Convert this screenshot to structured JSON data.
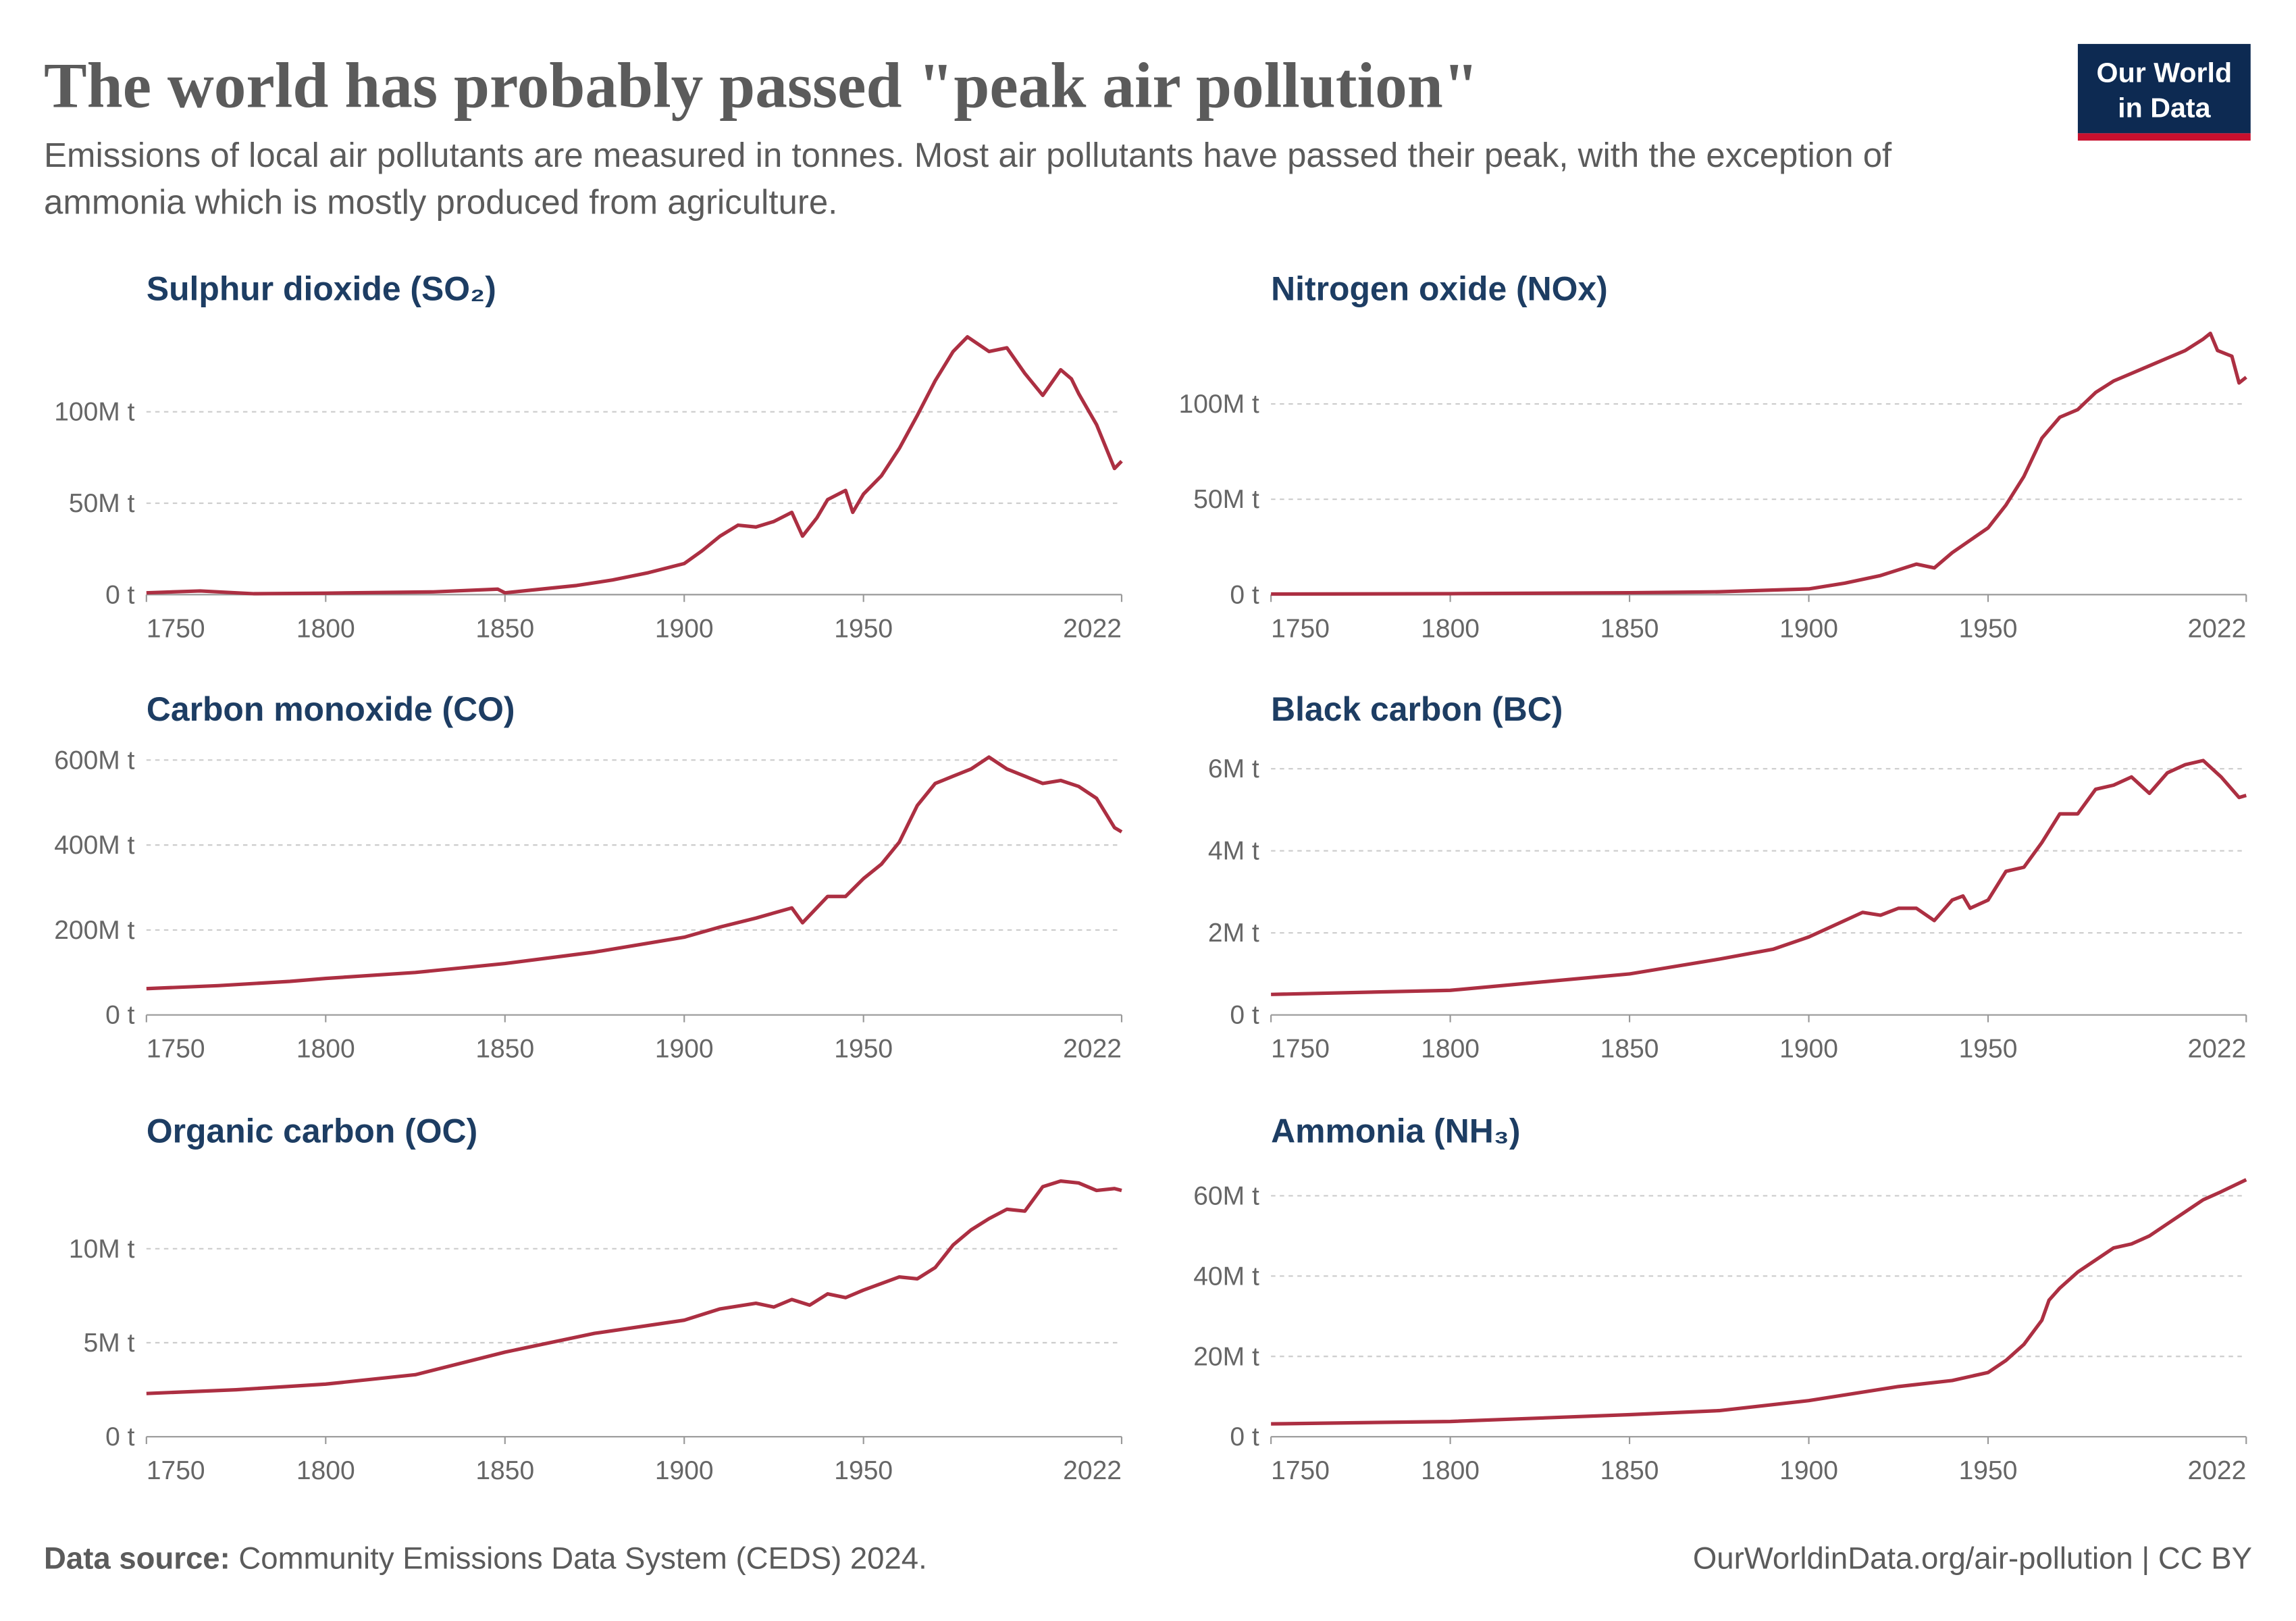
{
  "header": {
    "title": "The world has probably passed \"peak air pollution\"",
    "subtitle": "Emissions of local air pollutants are measured in tonnes. Most air pollutants have passed their peak, with the exception of ammonia which is mostly produced from agriculture.",
    "logo": [
      "Our World",
      "in Data"
    ]
  },
  "footer": {
    "source_label": "Data source:",
    "source": "Community Emissions Data System (CEDS) 2024.",
    "credit": "OurWorldinData.org/air-pollution | CC BY"
  },
  "chart_data": [
    {
      "type": "line",
      "title": "Sulphur dioxide (SO₂)",
      "color": "#ac2f42",
      "x": [
        1750,
        1765,
        1780,
        1800,
        1830,
        1848,
        1850,
        1860,
        1870,
        1880,
        1890,
        1900,
        1905,
        1910,
        1915,
        1920,
        1925,
        1930,
        1933,
        1937,
        1940,
        1945,
        1947,
        1950,
        1955,
        1960,
        1965,
        1970,
        1975,
        1979,
        1985,
        1990,
        1995,
        2000,
        2005,
        2008,
        2010,
        2015,
        2020,
        2022
      ],
      "values": [
        1000000.0,
        2000000.0,
        500000.0,
        800000.0,
        1500000.0,
        3000000.0,
        1000000.0,
        3000000.0,
        5000000.0,
        8000000.0,
        12000000.0,
        17000000.0,
        24000000.0,
        32000000.0,
        38000000.0,
        37000000.0,
        40000000.0,
        45000000.0,
        32000000.0,
        42000000.0,
        52000000.0,
        57000000.0,
        45000000.0,
        55000000.0,
        65000000.0,
        80000000.0,
        98000000.0,
        117000000.0,
        133000000.0,
        141000000.0,
        133000000.0,
        135000000.0,
        121000000.0,
        109000000.0,
        123000000.0,
        118000000.0,
        110000000.0,
        93000000.0,
        69000000.0,
        73000000.0
      ],
      "xlim": [
        1750,
        2022
      ],
      "xticks": [
        1750,
        1800,
        1850,
        1900,
        1950,
        2022
      ],
      "ylim": [
        0,
        145000000.0
      ],
      "yticks": [
        {
          "value": 0,
          "label": "0 t"
        },
        {
          "value": 50000000.0,
          "label": "50M t"
        },
        {
          "value": 100000000.0,
          "label": "100M t"
        }
      ],
      "grid": true
    },
    {
      "type": "line",
      "title": "Nitrogen oxide (NOx)",
      "color": "#ac2f42",
      "x": [
        1750,
        1800,
        1850,
        1875,
        1900,
        1910,
        1920,
        1930,
        1935,
        1940,
        1950,
        1955,
        1960,
        1965,
        1970,
        1975,
        1980,
        1985,
        1990,
        1995,
        2000,
        2005,
        2010,
        2012,
        2014,
        2018,
        2020,
        2022
      ],
      "values": [
        300000.0,
        500000.0,
        1000000.0,
        1500000.0,
        3000000.0,
        6000000.0,
        10000000.0,
        16000000.0,
        14000000.0,
        22000000.0,
        35000000.0,
        47000000.0,
        62000000.0,
        82000000.0,
        93000000.0,
        97000000.0,
        106000000.0,
        112000000.0,
        116000000.0,
        120000000.0,
        124000000.0,
        128000000.0,
        134000000.0,
        137000000.0,
        128000000.0,
        125000000.0,
        111000000.0,
        114000000.0
      ],
      "xlim": [
        1750,
        2022
      ],
      "xticks": [
        1750,
        1800,
        1850,
        1900,
        1950,
        2022
      ],
      "ylim": [
        0,
        139000000.0
      ],
      "yticks": [
        {
          "value": 0,
          "label": "0 t"
        },
        {
          "value": 50000000.0,
          "label": "50M t"
        },
        {
          "value": 100000000.0,
          "label": "100M t"
        }
      ],
      "grid": true
    },
    {
      "type": "line",
      "title": "Carbon monoxide (CO)",
      "color": "#ac2f42",
      "x": [
        1750,
        1770,
        1790,
        1800,
        1825,
        1850,
        1875,
        1900,
        1910,
        1920,
        1930,
        1933,
        1940,
        1945,
        1950,
        1955,
        1960,
        1965,
        1970,
        1975,
        1980,
        1985,
        1990,
        1995,
        2000,
        2005,
        2010,
        2015,
        2020,
        2022
      ],
      "values": [
        62000000.0,
        69000000.0,
        79000000.0,
        86000000.0,
        100000000.0,
        121000000.0,
        148000000.0,
        183000000.0,
        207000000.0,
        228000000.0,
        252000000.0,
        217000000.0,
        279000000.0,
        279000000.0,
        321000000.0,
        355000000.0,
        407000000.0,
        493000000.0,
        545000000.0,
        562000000.0,
        579000000.0,
        607000000.0,
        579000000.0,
        562000000.0,
        545000000.0,
        552000000.0,
        538000000.0,
        510000000.0,
        441000000.0,
        431000000.0
      ],
      "xlim": [
        1750,
        2022
      ],
      "xticks": [
        1750,
        1800,
        1850,
        1900,
        1950,
        2022
      ],
      "ylim": [
        0,
        624000000.0
      ],
      "yticks": [
        {
          "value": 0,
          "label": "0 t"
        },
        {
          "value": 200000000.0,
          "label": "200M t"
        },
        {
          "value": 400000000.0,
          "label": "400M t"
        },
        {
          "value": 600000000.0,
          "label": "600M t"
        }
      ],
      "grid": true
    },
    {
      "type": "line",
      "title": "Black carbon (BC)",
      "color": "#ac2f42",
      "x": [
        1750,
        1800,
        1850,
        1875,
        1890,
        1900,
        1910,
        1915,
        1920,
        1925,
        1930,
        1935,
        1940,
        1943,
        1945,
        1950,
        1955,
        1960,
        1965,
        1970,
        1975,
        1980,
        1985,
        1990,
        1995,
        2000,
        2005,
        2010,
        2015,
        2020,
        2022
      ],
      "values": [
        500000.0,
        600000.0,
        1000000.0,
        1360000.0,
        1600000.0,
        1900000.0,
        2300000.0,
        2500000.0,
        2430000.0,
        2600000.0,
        2600000.0,
        2300000.0,
        2800000.0,
        2900000.0,
        2600000.0,
        2800000.0,
        3500000.0,
        3600000.0,
        4200000.0,
        4900000.0,
        4900000.0,
        5500000.0,
        5600000.0,
        5800000.0,
        5400000.0,
        5900000.0,
        6100000.0,
        6200000.0,
        5800000.0,
        5300000.0,
        5350000.0
      ],
      "xlim": [
        1750,
        2022
      ],
      "xticks": [
        1750,
        1800,
        1850,
        1900,
        1950,
        2022
      ],
      "ylim": [
        0,
        6460000.0
      ],
      "yticks": [
        {
          "value": 0,
          "label": "0 t"
        },
        {
          "value": 2000000.0,
          "label": "2M t"
        },
        {
          "value": 4000000.0,
          "label": "4M t"
        },
        {
          "value": 6000000.0,
          "label": "6M t"
        }
      ],
      "grid": true
    },
    {
      "type": "line",
      "title": "Organic carbon (OC)",
      "color": "#ac2f42",
      "x": [
        1750,
        1775,
        1800,
        1825,
        1850,
        1875,
        1900,
        1910,
        1920,
        1925,
        1930,
        1935,
        1940,
        1945,
        1950,
        1960,
        1965,
        1970,
        1975,
        1980,
        1985,
        1990,
        1995,
        2000,
        2005,
        2010,
        2015,
        2020,
        2022
      ],
      "values": [
        2300000.0,
        2500000.0,
        2800000.0,
        3300000.0,
        4500000.0,
        5500000.0,
        6200000.0,
        6800000.0,
        7100000.0,
        6900000.0,
        7300000.0,
        7000000.0,
        7600000.0,
        7400000.0,
        7800000.0,
        8500000.0,
        8400000.0,
        9000000.0,
        10200000.0,
        11000000.0,
        11600000.0,
        12100000.0,
        12000000.0,
        13300000.0,
        13600000.0,
        13500000.0,
        13100000.0,
        13200000.0,
        13100000.0
      ],
      "xlim": [
        1750,
        2022
      ],
      "xticks": [
        1750,
        1800,
        1850,
        1900,
        1950,
        2022
      ],
      "ylim": [
        0,
        14100000.0
      ],
      "yticks": [
        {
          "value": 0,
          "label": "0 t"
        },
        {
          "value": 5000000.0,
          "label": "5M t"
        },
        {
          "value": 10000000.0,
          "label": "10M t"
        }
      ],
      "grid": true
    },
    {
      "type": "line",
      "title": "Ammonia (NH₃)",
      "color": "#ac2f42",
      "x": [
        1750,
        1800,
        1850,
        1875,
        1900,
        1925,
        1930,
        1940,
        1950,
        1955,
        1960,
        1965,
        1967,
        1970,
        1975,
        1980,
        1985,
        1990,
        1995,
        2000,
        2005,
        2010,
        2015,
        2022
      ],
      "values": [
        3200000.0,
        3800000.0,
        5500000.0,
        6500000.0,
        9000000.0,
        12500000.0,
        13000000.0,
        14000000.0,
        16000000.0,
        19000000.0,
        23000000.0,
        29000000.0,
        34000000.0,
        37000000.0,
        41000000.0,
        44000000.0,
        47000000.0,
        48000000.0,
        50000000.0,
        53000000.0,
        56000000.0,
        59000000.0,
        61000000.0,
        64000000.0
      ],
      "xlim": [
        1750,
        2022
      ],
      "xticks": [
        1750,
        1800,
        1850,
        1900,
        1950,
        2022
      ],
      "ylim": [
        0,
        66000000.0
      ],
      "yticks": [
        {
          "value": 0,
          "label": "0 t"
        },
        {
          "value": 20000000.0,
          "label": "20M t"
        },
        {
          "value": 40000000.0,
          "label": "40M t"
        },
        {
          "value": 60000000.0,
          "label": "60M t"
        }
      ],
      "grid": true
    }
  ]
}
